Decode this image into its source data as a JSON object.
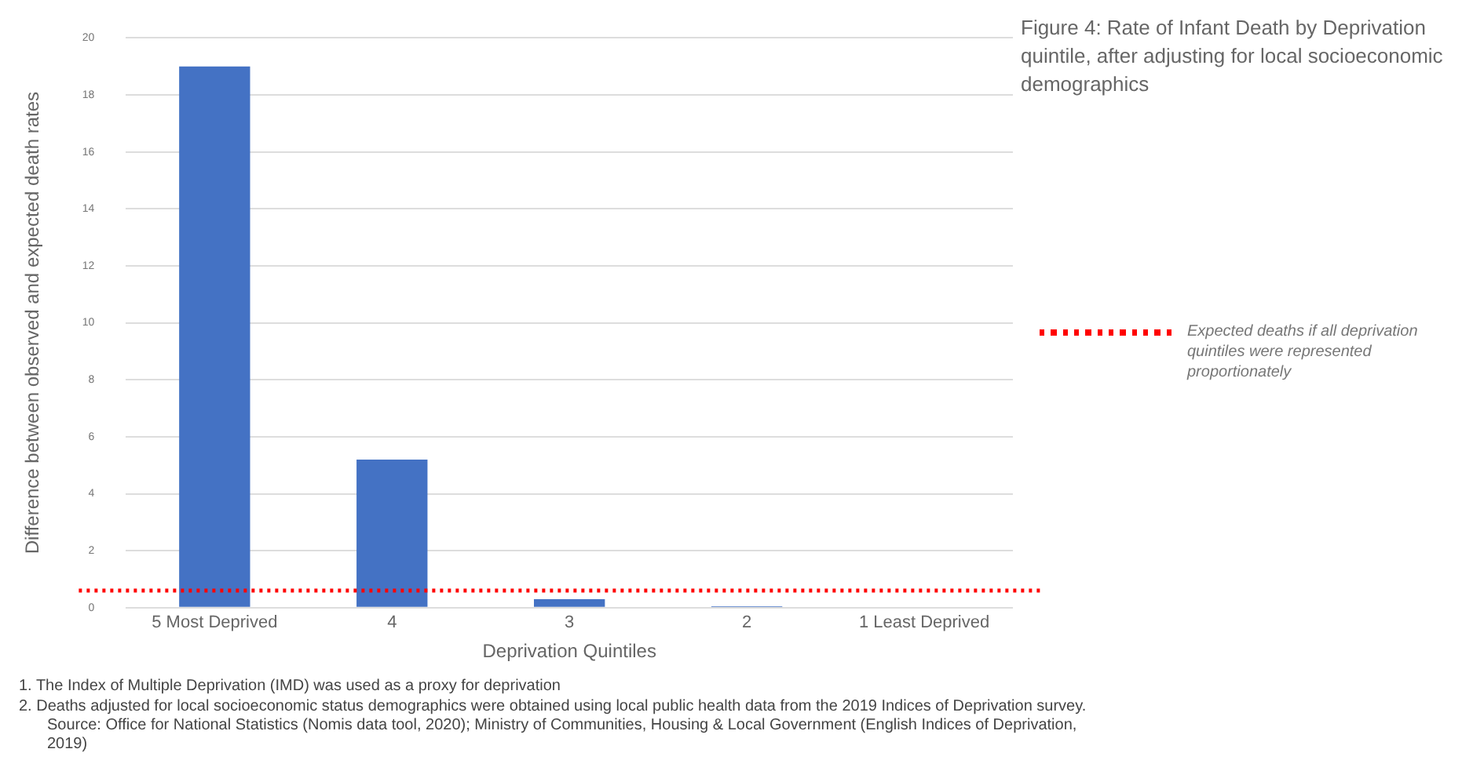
{
  "chart_data": {
    "type": "bar",
    "title": "Figure 4: Rate of Infant Death by Deprivation quintile, after adjusting for local socioeconomic demographics",
    "xlabel": "Deprivation Quintiles",
    "ylabel": "Difference between observed and expected death rates",
    "categories": [
      "5 Most Deprived",
      "4",
      "3",
      "2",
      "1 Least Deprived"
    ],
    "values": [
      19.0,
      5.2,
      0.3,
      0.05,
      0
    ],
    "color": "#4472c4",
    "ylim": [
      0,
      20
    ],
    "yticks": [
      0,
      2,
      4,
      6,
      8,
      10,
      12,
      14,
      16,
      18,
      20
    ],
    "grid": "y",
    "legend": "right",
    "ref_lines": [
      {
        "axis": "y",
        "value": 0.6,
        "label": "Expected deaths if all deprivation quintiles were represented proportionately",
        "color": "#ff0000",
        "line_style": "dotted"
      }
    ],
    "annotations": [
      "1.   The Index of Multiple Deprivation (IMD) was used as a proxy for deprivation",
      "2.   Deaths adjusted for local socioeconomic status demographics were obtained using local public health data from the 2019 Indices of Deprivation survey. Source: Office for National Statistics (Nomis data tool, 2020); Ministry of Communities, Housing & Local Government (English Indices of Deprivation, 2019)"
    ]
  }
}
